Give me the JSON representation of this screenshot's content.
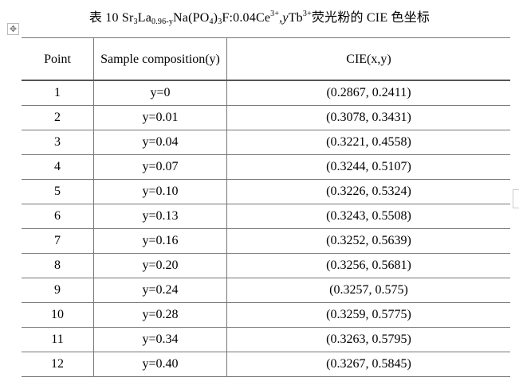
{
  "title": [
    "表 10 Sr",
    "3",
    "La",
    "0.96-y",
    "Na(PO",
    "4",
    ")",
    "3",
    "F:0.04Ce",
    "3+",
    ",",
    "y",
    "Tb",
    "3+",
    "荧光粉的 CIE 色坐标"
  ],
  "table": {
    "header": [
      "Point",
      "Sample composition(y)",
      "CIE(x,y)"
    ],
    "rows": [
      [
        1,
        "y=0",
        "(0.2867, 0.2411)"
      ],
      [
        2,
        "y=0.01",
        "(0.3078, 0.3431)"
      ],
      [
        3,
        "y=0.04",
        "(0.3221, 0.4558)"
      ],
      [
        4,
        "y=0.07",
        "(0.3244, 0.5107)"
      ],
      [
        5,
        "y=0.10",
        "(0.3226, 0.5324)"
      ],
      [
        6,
        "y=0.13",
        "(0.3243, 0.5508)"
      ],
      [
        7,
        "y=0.16",
        "(0.3252, 0.5639)"
      ],
      [
        8,
        "y=0.20",
        "(0.3256, 0.5681)"
      ],
      [
        9,
        "y=0.24",
        "(0.3257, 0.575)"
      ],
      [
        10,
        "y=0.28",
        "(0.3259, 0.5775)"
      ],
      [
        11,
        "y=0.34",
        "(0.3263, 0.5795)"
      ],
      [
        12,
        "y=0.40",
        "(0.3267, 0.5845)"
      ]
    ]
  }
}
